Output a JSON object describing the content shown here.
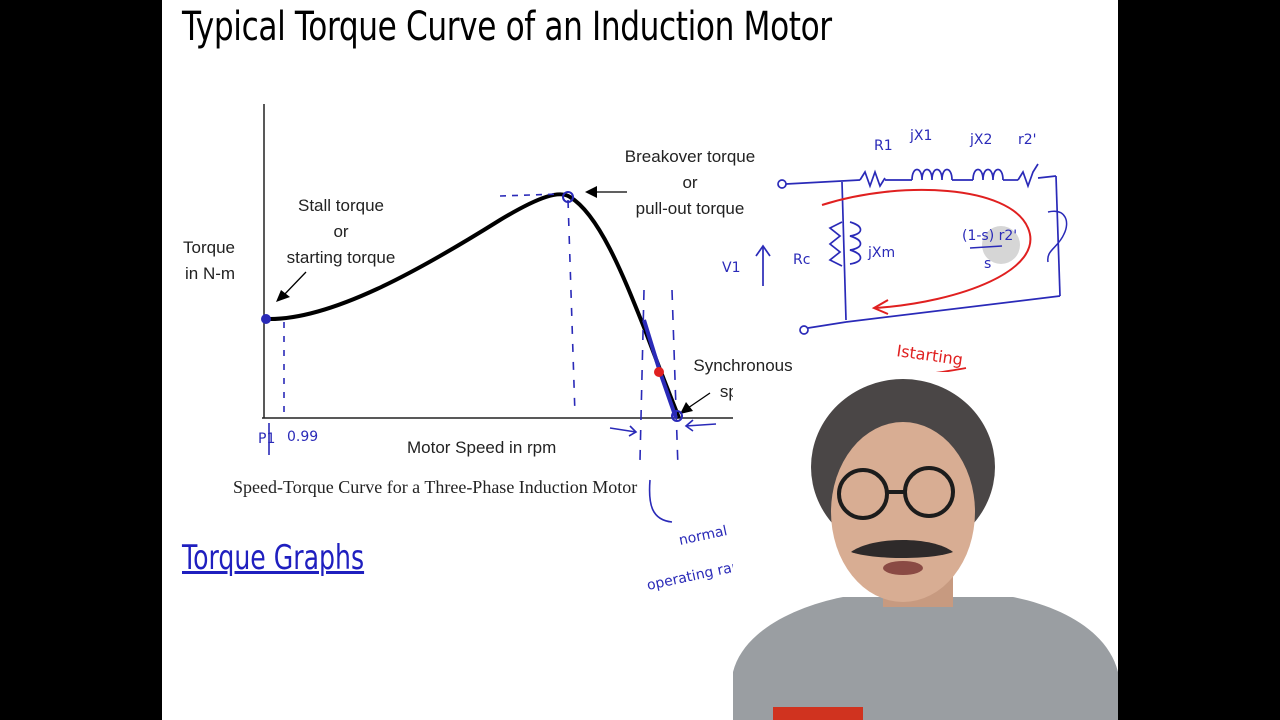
{
  "slide": {
    "title": "Typical Torque Curve of an Induction Motor",
    "link_label": "Torque Graphs"
  },
  "figure": {
    "y_axis_label_line1": "Torque",
    "y_axis_label_line2": "in N-m",
    "x_axis_label": "Motor Speed in rpm",
    "caption": "Speed-Torque Curve for a Three-Phase Induction Motor",
    "stall_label": [
      "Stall torque",
      "or",
      "starting torque"
    ],
    "breakover_label": [
      "Breakover torque",
      "or",
      "pull-out torque"
    ],
    "sync_label": [
      "Synchronous",
      "speed"
    ]
  },
  "annotations": {
    "x_origin": "P1",
    "x_tick": "0.99",
    "circuit_labels": [
      "R1",
      "jX1",
      "jX2",
      "r2'",
      "V1",
      "Rc",
      "jXm",
      "(1-s) r2'",
      "s"
    ],
    "starting_current": "Istarting",
    "range_note_line1": "normal",
    "range_note_line2": "operating range."
  },
  "colors": {
    "ink_blue": "#2a2ab8",
    "ink_red": "#e02020",
    "curve": "#000000",
    "link": "#1f1fbf"
  }
}
